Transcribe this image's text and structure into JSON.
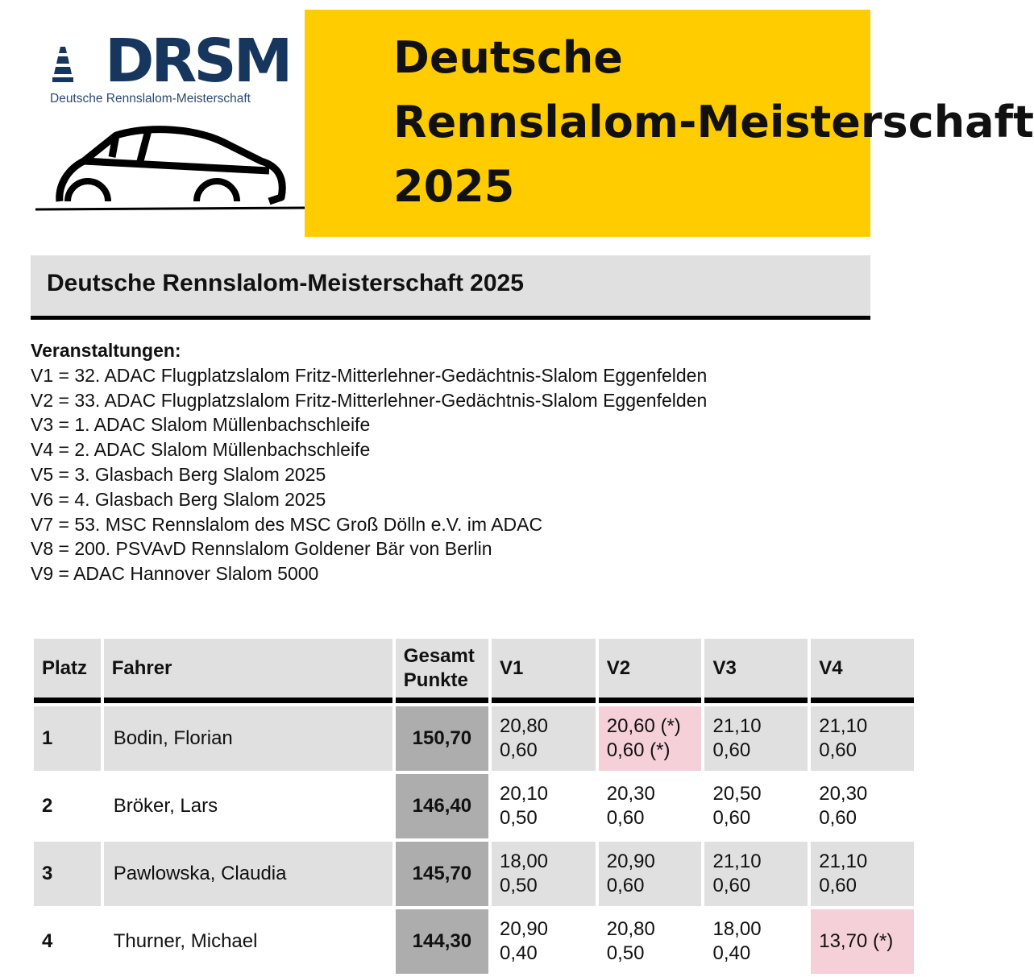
{
  "banner": {
    "logo_text": "DRSM",
    "logo_subtitle": "Deutsche Rennslalom-Meisterschaft",
    "title_lines": [
      "Deutsche",
      "Rennslalom-Meisterschaft",
      "2025"
    ],
    "accent": "#ffcc00",
    "logo_color": "#17365d"
  },
  "page_title": "Deutsche Rennslalom-Meisterschaft 2025",
  "events": {
    "heading": "Veranstaltungen:",
    "items": [
      "V1 = 32. ADAC Flugplatzslalom Fritz-Mitterlehner-Gedächtnis-Slalom Eggenfelden",
      "V2 = 33. ADAC Flugplatzslalom Fritz-Mitterlehner-Gedächtnis-Slalom Eggenfelden",
      "V3 = 1. ADAC Slalom Müllenbachschleife",
      "V4 = 2. ADAC Slalom Müllenbachschleife",
      "V5 = 3. Glasbach Berg Slalom 2025",
      "V6 = 4. Glasbach Berg Slalom 2025",
      "V7 = 53. MSC Rennslalom des MSC Groß Dölln e.V. im ADAC",
      "V8 = 200. PSVAvD Rennslalom Goldener Bär von Berlin",
      "V9 = ADAC Hannover Slalom 5000"
    ]
  },
  "table": {
    "headers": {
      "platz": "Platz",
      "fahrer": "Fahrer",
      "gesamt1": "Gesamt",
      "gesamt2": "Punkte",
      "v1": "V1",
      "v2": "V2",
      "v3": "V3",
      "v4": "V4"
    },
    "rows": [
      {
        "platz": "1",
        "fahrer": "Bodin, Florian",
        "gesamt": "150,70",
        "v": [
          [
            "20,80",
            "0,60"
          ],
          [
            "20,60 (*)",
            "0,60 (*)"
          ],
          [
            "21,10",
            "0,60"
          ],
          [
            "21,10",
            "0,60"
          ]
        ]
      },
      {
        "platz": "2",
        "fahrer": "Bröker, Lars",
        "gesamt": "146,40",
        "v": [
          [
            "20,10",
            "0,50"
          ],
          [
            "20,30",
            "0,60"
          ],
          [
            "20,50",
            "0,60"
          ],
          [
            "20,30",
            "0,60"
          ]
        ]
      },
      {
        "platz": "3",
        "fahrer": "Pawlowska, Claudia",
        "gesamt": "145,70",
        "v": [
          [
            "18,00",
            "0,50"
          ],
          [
            "20,90",
            "0,60"
          ],
          [
            "21,10",
            "0,60"
          ],
          [
            "21,10",
            "0,60"
          ]
        ]
      },
      {
        "platz": "4",
        "fahrer": "Thurner, Michael",
        "gesamt": "144,30",
        "v": [
          [
            "20,90",
            "0,40"
          ],
          [
            "20,80",
            "0,50"
          ],
          [
            "18,00",
            "0,40"
          ],
          [
            "13,70 (*)",
            ""
          ]
        ]
      }
    ]
  }
}
